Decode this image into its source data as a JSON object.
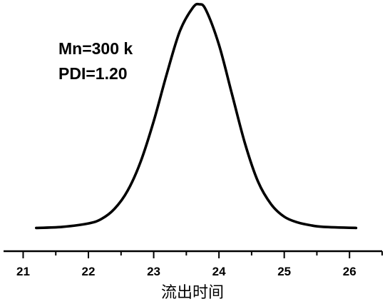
{
  "chart_data": {
    "type": "line",
    "title": "",
    "xlabel": "流出时间",
    "ylabel": "",
    "xlim": [
      20.7,
      26.5
    ],
    "ylim": [
      0,
      1.0
    ],
    "xticks": [
      21,
      22,
      23,
      24,
      25,
      26
    ],
    "grid": false,
    "legend": "none",
    "annotations": [
      "Mn=300 k",
      "PDI=1.20"
    ],
    "series": [
      {
        "x": [
          21.2,
          21.6,
          22.0,
          22.2,
          22.4,
          22.6,
          22.8,
          23.0,
          23.2,
          23.4,
          23.6,
          23.7,
          23.8,
          24.0,
          24.2,
          24.4,
          24.6,
          24.8,
          25.0,
          25.2,
          25.4,
          25.6,
          26.1
        ],
        "y": [
          0.005,
          0.01,
          0.025,
          0.045,
          0.09,
          0.17,
          0.3,
          0.48,
          0.69,
          0.88,
          0.985,
          1.0,
          0.975,
          0.82,
          0.6,
          0.38,
          0.21,
          0.11,
          0.055,
          0.03,
          0.017,
          0.01,
          0.005
        ]
      }
    ],
    "colors": {
      "line": "#000000",
      "axis": "#000000"
    }
  }
}
